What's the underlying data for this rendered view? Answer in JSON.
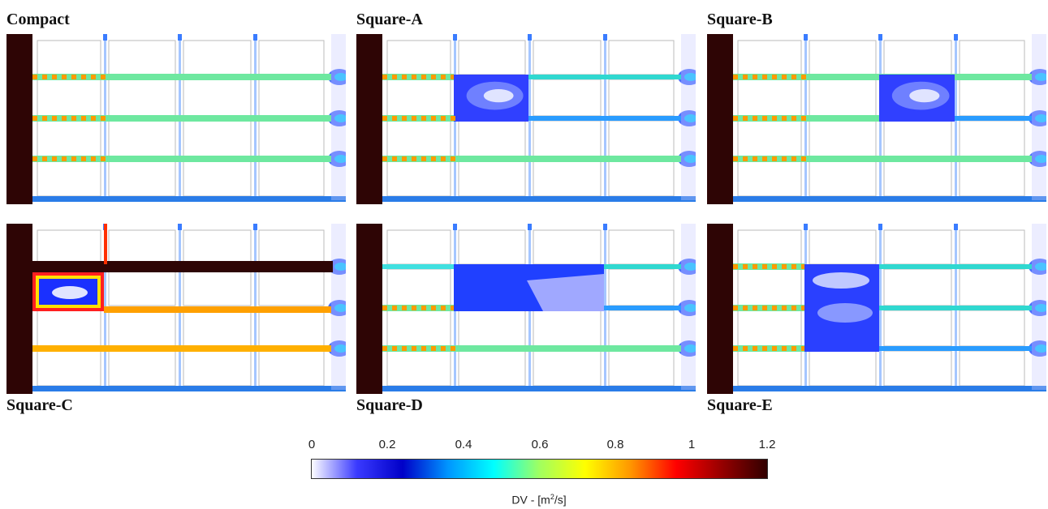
{
  "panels": [
    {
      "id": "compact",
      "label": "Compact"
    },
    {
      "id": "square-a",
      "label": "Square-A"
    },
    {
      "id": "square-b",
      "label": "Square-B"
    },
    {
      "id": "square-c",
      "label": "Square-C"
    },
    {
      "id": "square-d",
      "label": "Square-D"
    },
    {
      "id": "square-e",
      "label": "Square-E"
    }
  ],
  "colorbar": {
    "title_prefix": "DV - [m",
    "title_sup": "2",
    "title_suffix": "/s]",
    "ticks": [
      "0",
      "0.2",
      "0.4",
      "0.6",
      "0.8",
      "1",
      "1.2"
    ],
    "min": 0,
    "max": 1.2,
    "colors": [
      "#ffffff",
      "#3a3aff",
      "#0000c8",
      "#0096ff",
      "#00ffff",
      "#a0ff60",
      "#ffff00",
      "#ff9600",
      "#ff0000",
      "#960000",
      "#300000"
    ]
  }
}
